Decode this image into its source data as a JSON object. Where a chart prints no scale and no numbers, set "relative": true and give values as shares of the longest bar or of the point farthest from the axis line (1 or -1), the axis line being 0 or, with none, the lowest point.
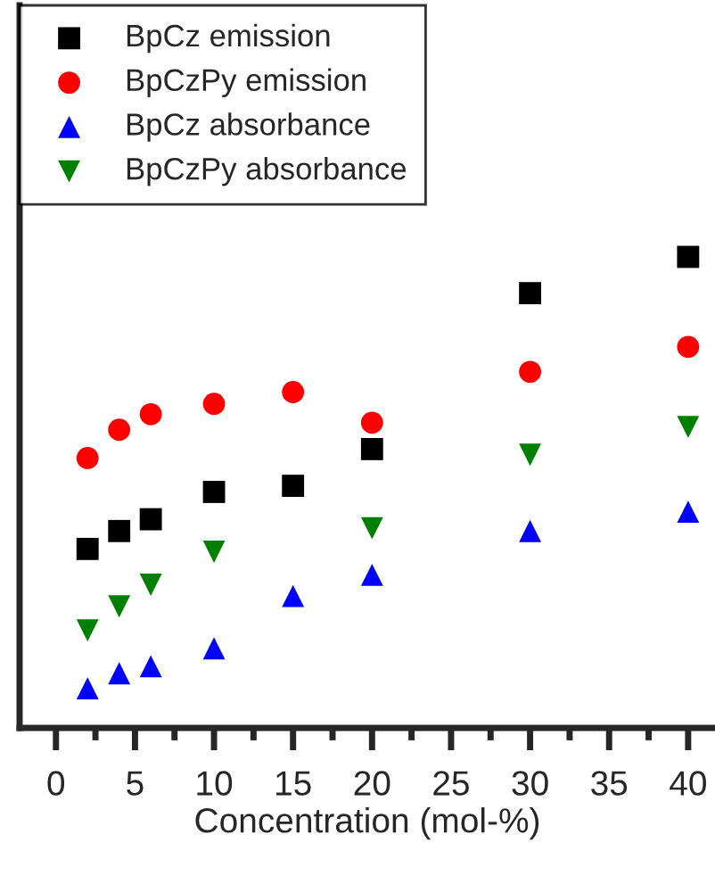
{
  "chart_data": {
    "type": "scatter",
    "xlabel": "Concentration (mol-%)",
    "x": [
      2,
      4,
      6,
      10,
      15,
      20,
      30,
      40
    ],
    "relative": true,
    "xlim": [
      -2.3,
      41.7
    ],
    "xticks": [
      0,
      {
        "value": 2.5,
        "label": null
      },
      5,
      {
        "value": 7.5,
        "label": null
      },
      10,
      {
        "value": 12.5,
        "label": null
      },
      15,
      {
        "value": 17.5,
        "label": null
      },
      20,
      {
        "value": 22.5,
        "label": null
      },
      25,
      {
        "value": 27.5,
        "label": null
      },
      30,
      {
        "value": 32.5,
        "label": null
      },
      35,
      {
        "value": 37.5,
        "label": null
      },
      40
    ],
    "tick_labels": "x",
    "grid": false,
    "legend": "top left",
    "series": [
      {
        "name": "BpCz emission",
        "color": "#000000",
        "marker": "square",
        "values": [
          0.38,
          0.418,
          0.443,
          0.501,
          0.514,
          0.592,
          0.923,
          1
        ]
      },
      {
        "name": "BpCzPy emission",
        "color": "#ff0000",
        "marker": "circle",
        "values": [
          0.573,
          0.633,
          0.666,
          0.688,
          0.713,
          0.648,
          0.756,
          0.809
        ]
      },
      {
        "name": "BpCz absorbance",
        "color": "#0000ff",
        "marker": "triangle",
        "values": [
          0.084,
          0.116,
          0.131,
          0.169,
          0.28,
          0.325,
          0.418,
          0.459
        ]
      },
      {
        "name": "BpCzPy absorbance",
        "color": "#008000",
        "marker": "triangle_down",
        "values": [
          0.207,
          0.258,
          0.304,
          0.374,
          null,
          0.424,
          0.58,
          0.639
        ]
      }
    ]
  }
}
